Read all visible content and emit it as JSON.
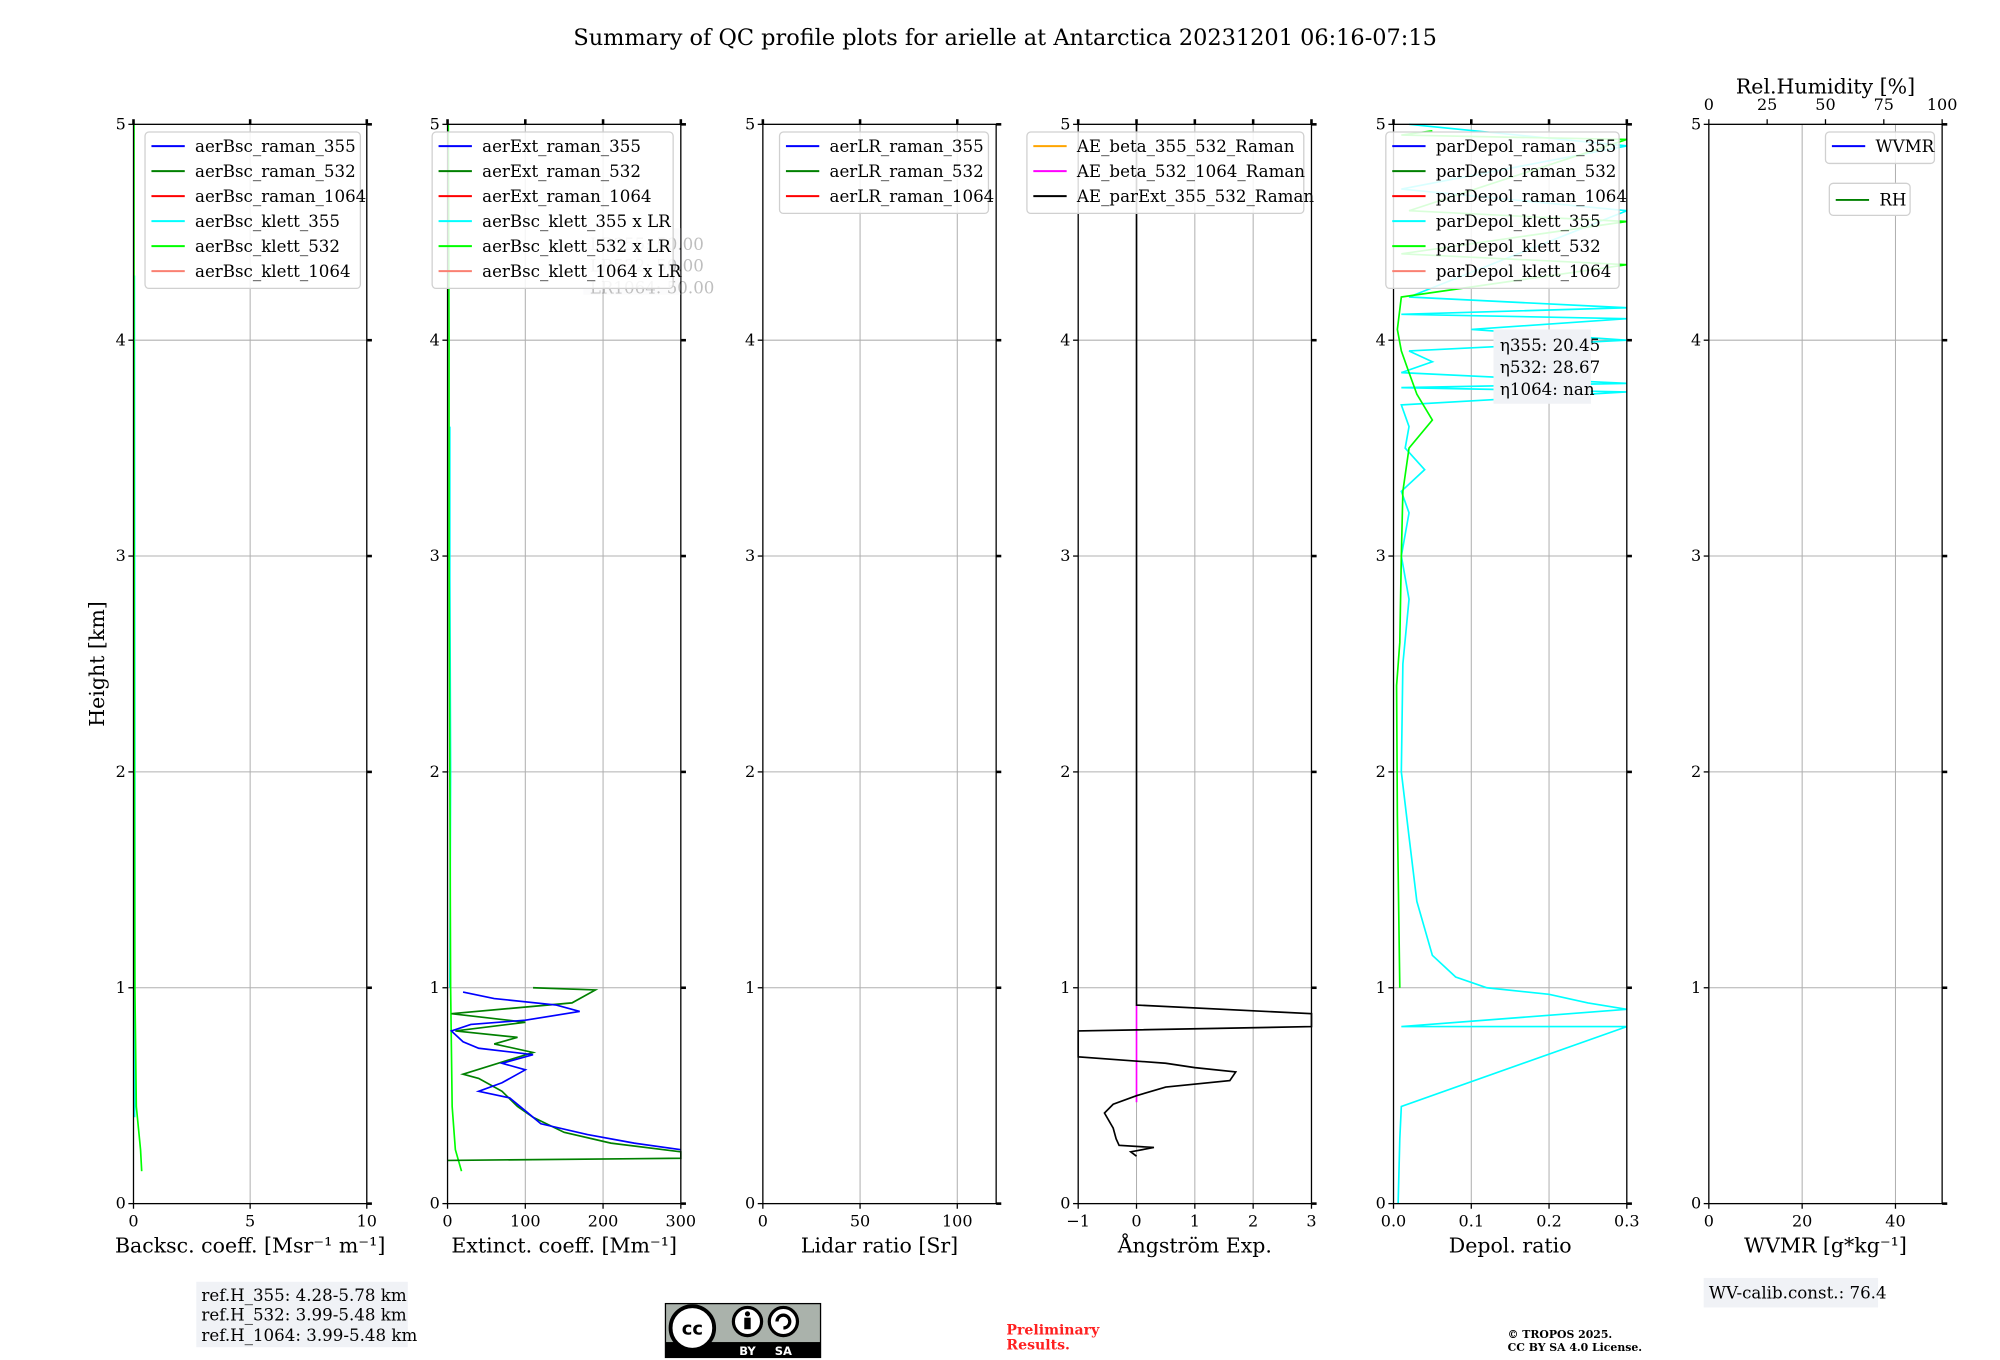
{
  "chart_data": {
    "type": "line",
    "title": "Summary of QC profile plots for arielle at Antarctica 20231201 06:16-07:15",
    "ylabel": "Height [km]",
    "ylim": [
      0,
      5
    ],
    "yticks": [
      "0",
      "1",
      "2",
      "3",
      "4",
      "5"
    ],
    "grid": true,
    "panels": [
      {
        "xlabel": "Backsc. coeff. [Msr⁻¹ m⁻¹]",
        "xlim": [
          0,
          10
        ],
        "xticks": [
          {
            "v": 0,
            "t": "0"
          },
          {
            "v": 5,
            "t": "5"
          },
          {
            "v": 10,
            "t": "10"
          }
        ],
        "legend": [
          "aerBsc_raman_355",
          "aerBsc_raman_532",
          "aerBsc_raman_1064",
          "aerBsc_klett_355",
          "aerBsc_klett_532",
          "aerBsc_klett_1064"
        ],
        "legend_colors": [
          "#0000ff",
          "#008000",
          "#ff0000",
          "#00ffff",
          "#00ff00",
          "#fa8072"
        ],
        "legend_placement": "top-right",
        "series": [
          {
            "name": "aerBsc_klett_355",
            "color": "#00ffff",
            "points": [
              [
                0.05,
                0.4
              ],
              [
                0.06,
                1.5
              ],
              [
                0.05,
                3
              ],
              [
                0.04,
                4.3
              ]
            ]
          },
          {
            "name": "aerBsc_klett_532",
            "color": "#00ff00",
            "points": [
              [
                0.35,
                0.15
              ],
              [
                0.3,
                0.25
              ],
              [
                0.12,
                0.45
              ],
              [
                0.06,
                1
              ],
              [
                0.04,
                2
              ],
              [
                0.03,
                3
              ],
              [
                0.02,
                4
              ],
              [
                0.02,
                5
              ]
            ]
          }
        ]
      },
      {
        "xlabel": "Extinct. coeff. [Mm⁻¹]",
        "xlim": [
          0,
          300
        ],
        "xticks": [
          {
            "v": 0,
            "t": "0"
          },
          {
            "v": 100,
            "t": "100"
          },
          {
            "v": 200,
            "t": "200"
          },
          {
            "v": 300,
            "t": "300"
          }
        ],
        "legend": [
          "aerExt_raman_355",
          "aerExt_raman_532",
          "aerExt_raman_1064",
          "aerBsc_klett_355 x LR",
          "aerBsc_klett_532 x LR",
          "aerBsc_klett_1064 x LR"
        ],
        "legend_colors": [
          "#0000ff",
          "#008000",
          "#ff0000",
          "#00ffff",
          "#00ff00",
          "#fa8072"
        ],
        "legend_placement": "top-right",
        "annotation": [
          "LR355: 50.00",
          "LR532: 50.00",
          "LR1064: 50.00"
        ],
        "series": [
          {
            "name": "aerBsc_klett_355 x LR",
            "color": "#00ffff",
            "points": [
              [
                3,
                1
              ],
              [
                4,
                2
              ],
              [
                3,
                2.9
              ],
              [
                3,
                3.6
              ]
            ]
          },
          {
            "name": "aerBsc_klett_532 x LR",
            "color": "#00ff00",
            "points": [
              [
                18,
                0.15
              ],
              [
                10,
                0.25
              ],
              [
                6,
                0.45
              ],
              [
                4,
                1
              ],
              [
                3,
                2
              ],
              [
                2,
                3
              ],
              [
                2,
                4
              ],
              [
                1,
                5
              ]
            ]
          },
          {
            "name": "aerExt_raman_532",
            "color": "#008000",
            "points": [
              [
                0,
                0.2
              ],
              [
                300,
                0.21
              ],
              [
                300,
                0.24
              ],
              [
                210,
                0.28
              ],
              [
                150,
                0.33
              ],
              [
                110,
                0.4
              ],
              [
                90,
                0.45
              ],
              [
                70,
                0.52
              ],
              [
                40,
                0.58
              ],
              [
                20,
                0.6
              ],
              [
                110,
                0.7
              ],
              [
                60,
                0.74
              ],
              [
                90,
                0.77
              ],
              [
                10,
                0.8
              ],
              [
                100,
                0.84
              ],
              [
                5,
                0.88
              ],
              [
                160,
                0.93
              ],
              [
                190,
                0.99
              ],
              [
                110,
                1.0
              ]
            ]
          },
          {
            "name": "aerExt_raman_355",
            "color": "#0000ff",
            "points": [
              [
                300,
                0.25
              ],
              [
                240,
                0.28
              ],
              [
                180,
                0.32
              ],
              [
                120,
                0.37
              ],
              [
                100,
                0.43
              ],
              [
                80,
                0.49
              ],
              [
                40,
                0.52
              ],
              [
                70,
                0.56
              ],
              [
                100,
                0.62
              ],
              [
                70,
                0.65
              ],
              [
                110,
                0.69
              ],
              [
                40,
                0.72
              ],
              [
                20,
                0.75
              ],
              [
                5,
                0.8
              ],
              [
                30,
                0.83
              ],
              [
                100,
                0.85
              ],
              [
                170,
                0.89
              ],
              [
                140,
                0.92
              ],
              [
                60,
                0.95
              ],
              [
                20,
                0.98
              ]
            ]
          }
        ]
      },
      {
        "xlabel": "Lidar ratio [Sr]",
        "xlim": [
          0,
          120
        ],
        "xticks": [
          {
            "v": 0,
            "t": "0"
          },
          {
            "v": 50,
            "t": "50"
          },
          {
            "v": 100,
            "t": "100"
          }
        ],
        "legend": [
          "aerLR_raman_355",
          "aerLR_raman_532",
          "aerLR_raman_1064"
        ],
        "legend_colors": [
          "#0000ff",
          "#008000",
          "#ff0000"
        ],
        "legend_placement": "top-right",
        "series": []
      },
      {
        "xlabel": "Ångström Exp.",
        "xlim": [
          -1,
          3
        ],
        "xticks": [
          {
            "v": -1,
            "t": "−1"
          },
          {
            "v": 0,
            "t": "0"
          },
          {
            "v": 1,
            "t": "1"
          },
          {
            "v": 2,
            "t": "2"
          },
          {
            "v": 3,
            "t": "3"
          }
        ],
        "legend": [
          "AE_beta_355_532_Raman",
          "AE_beta_532_1064_Raman",
          "AE_parExt_355_532_Raman"
        ],
        "legend_colors": [
          "#ffa500",
          "#ff00ff",
          "#000000"
        ],
        "legend_placement": "top-right",
        "series": [
          {
            "name": "AE_beta_532_1064_Raman",
            "color": "#ff00ff",
            "points": [
              [
                0,
                0.47
              ],
              [
                0,
                0.92
              ]
            ]
          },
          {
            "name": "AE_parExt_355_532_Raman",
            "color": "#000000",
            "points": [
              [
                0,
                5
              ],
              [
                0,
                0.92
              ],
              [
                3,
                0.88
              ],
              [
                3,
                0.82
              ],
              [
                -1,
                0.8
              ],
              [
                -1,
                0.68
              ],
              [
                0.5,
                0.65
              ],
              [
                1,
                0.63
              ],
              [
                1.7,
                0.61
              ],
              [
                1.6,
                0.57
              ],
              [
                0.5,
                0.54
              ],
              [
                0,
                0.5
              ],
              [
                -0.4,
                0.46
              ],
              [
                -0.55,
                0.42
              ],
              [
                -0.4,
                0.35
              ],
              [
                -0.35,
                0.3
              ],
              [
                -0.3,
                0.27
              ],
              [
                0.3,
                0.26
              ],
              [
                -0.1,
                0.24
              ],
              [
                0,
                0.22
              ]
            ]
          }
        ]
      },
      {
        "xlabel": "Depol. ratio",
        "xlim": [
          0,
          0.3
        ],
        "xticks": [
          {
            "v": 0,
            "t": "0.0"
          },
          {
            "v": 0.1,
            "t": "0.1"
          },
          {
            "v": 0.2,
            "t": "0.2"
          },
          {
            "v": 0.3,
            "t": "0.3"
          }
        ],
        "legend": [
          "parDepol_raman_355",
          "parDepol_raman_532",
          "parDepol_raman_1064",
          "parDepol_klett_355",
          "parDepol_klett_532",
          "parDepol_klett_1064"
        ],
        "legend_colors": [
          "#0000ff",
          "#008000",
          "#ff0000",
          "#00ffff",
          "#00ff00",
          "#fa8072"
        ],
        "legend_placement": "top-right",
        "annotation": [
          "η355: 20.45",
          "η532: 28.67",
          "η1064: nan"
        ],
        "series": [
          {
            "name": "parDepol_klett_355",
            "color": "#00ffff",
            "points": [
              [
                0.006,
                0
              ],
              [
                0.008,
                0.3
              ],
              [
                0.01,
                0.45
              ],
              [
                0.3,
                0.82
              ],
              [
                0.01,
                0.82
              ],
              [
                0.3,
                0.9
              ],
              [
                0.25,
                0.93
              ],
              [
                0.2,
                0.97
              ],
              [
                0.12,
                1.0
              ],
              [
                0.08,
                1.05
              ],
              [
                0.05,
                1.15
              ],
              [
                0.03,
                1.4
              ],
              [
                0.02,
                1.7
              ],
              [
                0.01,
                2.0
              ],
              [
                0.012,
                2.5
              ],
              [
                0.02,
                2.8
              ],
              [
                0.01,
                3.0
              ],
              [
                0.02,
                3.2
              ],
              [
                0.01,
                3.3
              ],
              [
                0.04,
                3.4
              ],
              [
                0.015,
                3.5
              ],
              [
                0.02,
                3.6
              ],
              [
                0.01,
                3.7
              ],
              [
                0.3,
                3.76
              ],
              [
                0.01,
                3.78
              ],
              [
                0.3,
                3.8
              ],
              [
                0.01,
                3.85
              ],
              [
                0.05,
                3.9
              ],
              [
                0.02,
                3.95
              ],
              [
                0.3,
                4.0
              ],
              [
                0.1,
                4.05
              ],
              [
                0.3,
                4.1
              ],
              [
                0.01,
                4.12
              ],
              [
                0.3,
                4.15
              ],
              [
                0.02,
                4.2
              ],
              [
                0.3,
                4.6
              ],
              [
                0.01,
                4.7
              ],
              [
                0.3,
                4.9
              ],
              [
                0.02,
                5
              ]
            ]
          },
          {
            "name": "parDepol_klett_532",
            "color": "#00ff00",
            "points": [
              [
                0.008,
                1
              ],
              [
                0.005,
                1.8
              ],
              [
                0.004,
                2.4
              ],
              [
                0.008,
                2.6
              ],
              [
                0.01,
                3.0
              ],
              [
                0.012,
                3.3
              ],
              [
                0.02,
                3.5
              ],
              [
                0.05,
                3.63
              ],
              [
                0.03,
                3.75
              ],
              [
                0.02,
                3.85
              ],
              [
                0.01,
                3.95
              ],
              [
                0.005,
                4.05
              ],
              [
                0.01,
                4.2
              ],
              [
                0.3,
                4.35
              ],
              [
                0.01,
                4.4
              ],
              [
                0.3,
                4.55
              ],
              [
                0.02,
                4.6
              ],
              [
                0.3,
                4.93
              ],
              [
                0.01,
                4.95
              ],
              [
                0.05,
                4.97
              ]
            ]
          }
        ]
      },
      {
        "xlabel": "WVMR [g*kg⁻¹]",
        "xlim": [
          0,
          50
        ],
        "xticks": [
          {
            "v": 0,
            "t": "0"
          },
          {
            "v": 20,
            "t": "20"
          },
          {
            "v": 40,
            "t": "40"
          }
        ],
        "top_xlabel": "Rel.Humidity [%]",
        "top_xlim": [
          0,
          100
        ],
        "top_xticks": [
          {
            "v": 0,
            "t": "0"
          },
          {
            "v": 25,
            "t": "25"
          },
          {
            "v": 50,
            "t": "50"
          },
          {
            "v": 75,
            "t": "75"
          },
          {
            "v": 100,
            "t": "100"
          }
        ],
        "legend": [
          "WVMR"
        ],
        "legend_colors": [
          "#0000ff"
        ],
        "legend2": [
          "RH"
        ],
        "legend2_colors": [
          "#008000"
        ],
        "series": []
      }
    ]
  },
  "footer": {
    "ref_heights": [
      "ref.H_355: 4.28-5.78 km",
      "ref.H_532: 3.99-5.48 km",
      "ref.H_1064: 3.99-5.48 km"
    ],
    "license_badge": [
      "BY",
      "SA"
    ],
    "preliminary": [
      "Preliminary",
      "Results."
    ],
    "copyright": [
      "© TROPOS 2025.",
      "CC BY SA 4.0 License."
    ],
    "wv_calib": "WV-calib.const.: 76.4"
  }
}
